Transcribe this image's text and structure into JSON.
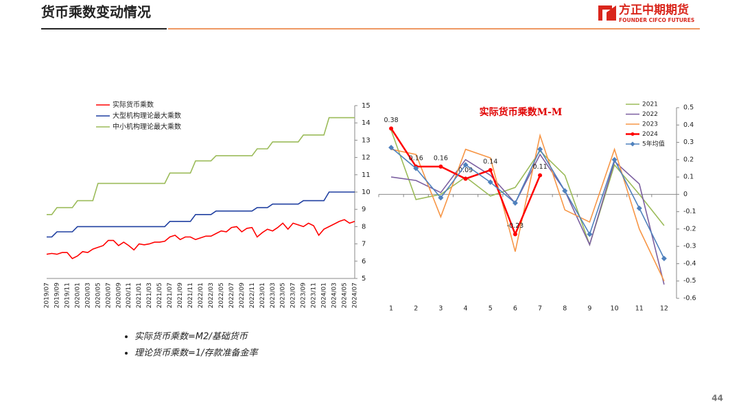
{
  "header": {
    "title": "货币乘数变动情况",
    "logo": "方正中期期货",
    "logo_en": "FOUNDER CIFCO FUTURES"
  },
  "chart_data": [
    {
      "type": "line",
      "categories": [
        "2019/07",
        null,
        "2019/09",
        null,
        "2019/11",
        null,
        "2020/01",
        null,
        "2020/03",
        null,
        "2020/05",
        null,
        "2020/07",
        null,
        "2020/09",
        null,
        "2020/11",
        null,
        "2021/01",
        null,
        "2021/03",
        null,
        "2021/05",
        null,
        "2021/07",
        null,
        "2021/09",
        null,
        "2021/11",
        null,
        "2022/01",
        null,
        "2022/03",
        null,
        "2022/05",
        null,
        "2022/07",
        null,
        "2022/09",
        null,
        "2022/11",
        null,
        "2023/01",
        null,
        "2023/03",
        null,
        "2023/05",
        null,
        "2023/07",
        null,
        "2023/09",
        null,
        "2023/11",
        null,
        "2024/01",
        null,
        "2024/03",
        null,
        "2024/05",
        null,
        "2024/07"
      ],
      "series": [
        {
          "name": "实际货币乘数",
          "color": "#ff0000",
          "values": [
            6.4,
            6.45,
            6.4,
            6.5,
            6.5,
            6.15,
            6.3,
            6.55,
            6.5,
            6.7,
            6.8,
            6.9,
            7.2,
            7.2,
            6.9,
            7.1,
            6.9,
            6.65,
            7.0,
            6.95,
            7.0,
            7.1,
            7.1,
            7.15,
            7.4,
            7.5,
            7.25,
            7.4,
            7.4,
            7.25,
            7.35,
            7.45,
            7.45,
            7.6,
            7.75,
            7.7,
            7.95,
            8.0,
            7.7,
            7.9,
            7.95,
            7.4,
            7.65,
            7.85,
            7.75,
            7.95,
            8.2,
            7.85,
            8.2,
            8.1,
            8.0,
            8.2,
            8.05,
            7.5,
            7.85,
            8.0,
            8.15,
            8.3,
            8.4,
            8.2,
            8.3
          ]
        },
        {
          "name": "大型机构理论最大乘数",
          "color": "#1f3fa0",
          "values": [
            7.4,
            7.4,
            7.7,
            7.7,
            7.7,
            7.7,
            8.0,
            8.0,
            8.0,
            8.0,
            8.0,
            8.0,
            8.0,
            8.0,
            8.0,
            8.0,
            8.0,
            8.0,
            8.0,
            8.0,
            8.0,
            8.0,
            8.0,
            8.0,
            8.3,
            8.3,
            8.3,
            8.3,
            8.3,
            8.7,
            8.7,
            8.7,
            8.7,
            8.9,
            8.9,
            8.9,
            8.9,
            8.9,
            8.9,
            8.9,
            8.9,
            9.1,
            9.1,
            9.1,
            9.3,
            9.3,
            9.3,
            9.3,
            9.3,
            9.3,
            9.5,
            9.5,
            9.5,
            9.5,
            9.5,
            10.0,
            10.0,
            10.0,
            10.0,
            10.0,
            10.0
          ]
        },
        {
          "name": "中小机构理论最大乘数",
          "color": "#9bbb59",
          "values": [
            8.7,
            8.7,
            9.1,
            9.1,
            9.1,
            9.1,
            9.5,
            9.5,
            9.5,
            9.5,
            10.5,
            10.5,
            10.5,
            10.5,
            10.5,
            10.5,
            10.5,
            10.5,
            10.5,
            10.5,
            10.5,
            10.5,
            10.5,
            10.5,
            11.1,
            11.1,
            11.1,
            11.1,
            11.1,
            11.8,
            11.8,
            11.8,
            11.8,
            12.1,
            12.1,
            12.1,
            12.1,
            12.1,
            12.1,
            12.1,
            12.1,
            12.5,
            12.5,
            12.5,
            12.9,
            12.9,
            12.9,
            12.9,
            12.9,
            12.9,
            13.3,
            13.3,
            13.3,
            13.3,
            13.3,
            14.3,
            14.3,
            14.3,
            14.3,
            14.3,
            14.3
          ]
        }
      ],
      "ylim": [
        5,
        15
      ],
      "yticks": [
        5,
        6,
        7,
        8,
        9,
        10,
        11,
        12,
        13,
        14,
        15
      ],
      "y_axis_side": "right",
      "legend": "top-left"
    },
    {
      "type": "line",
      "title": "实际货币乘数M-M",
      "categories": [
        1,
        2,
        3,
        4,
        5,
        6,
        7,
        8,
        9,
        10,
        11,
        12
      ],
      "series": [
        {
          "name": "2021",
          "color": "#9bbb59",
          "values": [
            0.37,
            -0.03,
            0.0,
            0.1,
            -0.01,
            0.04,
            0.25,
            0.11,
            -0.29,
            0.17,
            0.0,
            -0.18
          ]
        },
        {
          "name": "2022",
          "color": "#7b5fa0",
          "values": [
            0.1,
            0.08,
            0.01,
            0.2,
            0.11,
            -0.05,
            0.23,
            0.02,
            -0.29,
            0.19,
            0.06,
            -0.52
          ]
        },
        {
          "name": "2023",
          "color": "#f79646",
          "values": [
            0.26,
            0.23,
            -0.13,
            0.26,
            0.21,
            -0.33,
            0.34,
            -0.09,
            -0.16,
            0.26,
            -0.2,
            -0.5
          ]
        },
        {
          "name": "2024",
          "color": "#ff0000",
          "marker": "circle",
          "data_labels": true,
          "values": [
            0.38,
            0.16,
            0.16,
            0.09,
            0.14,
            -0.23,
            0.11,
            null,
            null,
            null,
            null,
            null
          ]
        },
        {
          "name": "5年均值",
          "color": "#4f81bd",
          "marker": "diamond",
          "values": [
            0.27,
            0.15,
            -0.02,
            0.17,
            0.07,
            -0.05,
            0.26,
            0.02,
            -0.23,
            0.2,
            -0.08,
            -0.37
          ]
        }
      ],
      "ylim": [
        -0.6,
        0.5
      ],
      "yticks": [
        -0.6,
        -0.5,
        -0.4,
        -0.3,
        -0.2,
        -0.1,
        0,
        0.1,
        0.2,
        0.3,
        0.4,
        0.5
      ],
      "y_axis_side": "right",
      "legend": "top-right"
    }
  ],
  "notes": [
    "实际货币乘数=M2/基础货币",
    "理论货币乘数=1/存款准备金率"
  ],
  "page_number": "44"
}
